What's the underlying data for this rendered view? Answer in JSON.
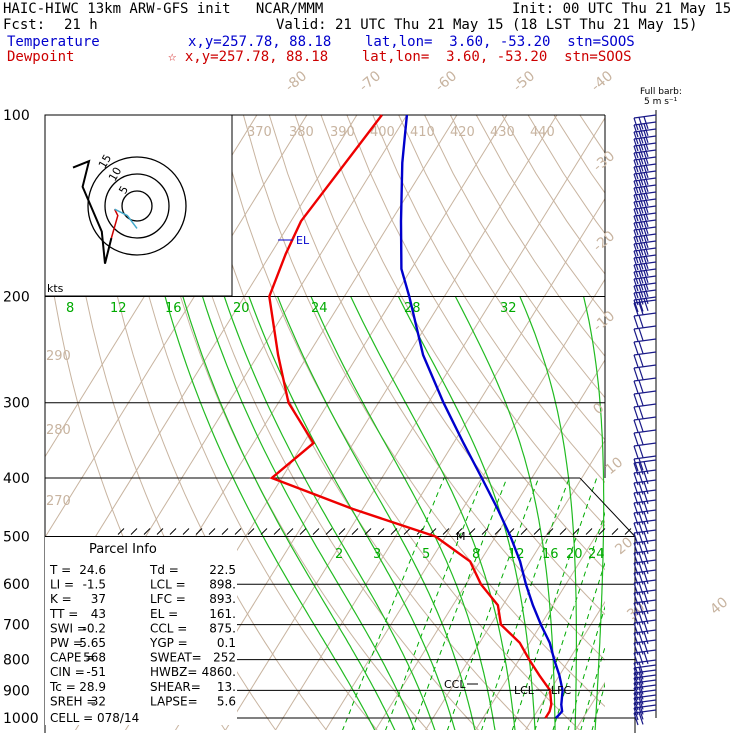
{
  "header": {
    "model_line": "HAIC-HIWC 13km ARW-GFS init   NCAR/MMM",
    "init_line": "Init: 00 UTC Thu 21 May 15",
    "fcst_label": "Fcst:",
    "fcst_value": "21 h",
    "valid_line": "Valid: 21 UTC Thu 21 May 15 (18 LST Thu 21 May 15)",
    "temp_label": "Temperature",
    "temp_info": "x,y=257.78, 88.18    lat,lon=  3.60, -53.20  stn=SOOS",
    "dew_label": "Dewpoint",
    "dew_info": "☆ x,y=257.78, 88.18    lat,lon=  3.60, -53.20  stn=SOOS"
  },
  "barb_label": "Full barb:",
  "barb_unit": "5 m s⁻¹",
  "hodo_unit": "kts",
  "hodo_ring_labels": [
    "5",
    "10",
    "15"
  ],
  "colors": {
    "temperature": "#0000cc",
    "dewpoint": "#ee0000",
    "isotherm": "#c8b4a0",
    "mixing_ratio": "#00aa00",
    "moist_adiabat": "#22bb22"
  },
  "parcel": {
    "title": "Parcel Info",
    "rows": [
      [
        "T  =",
        "24.6",
        "Td =",
        "22.5"
      ],
      [
        "LI =",
        "-1.5",
        "LCL =",
        "898."
      ],
      [
        "K  =",
        "37",
        "LFC =",
        "893."
      ],
      [
        "TT =",
        "43",
        "EL  =",
        "161."
      ],
      [
        "SWI =",
        "-0.2",
        "CCL =",
        "875."
      ],
      [
        "PW =",
        "5.65",
        "YGP =",
        "0.1"
      ],
      [
        "CAPE =",
        "568",
        "SWEAT=",
        "252"
      ],
      [
        "CIN =",
        "-51",
        "HWBZ=",
        "4860."
      ],
      [
        "Tc =",
        "28.9",
        "SHEAR=",
        "13."
      ],
      [
        "SREH =",
        "32",
        "LAPSE=",
        "5.6"
      ]
    ],
    "cell_line": "CELL = 078/14"
  },
  "chart_data": {
    "type": "line",
    "title": "",
    "xlabel": "",
    "ylabel": "",
    "y_axis": "pressure (hPa), log scale",
    "pressure_ticks": [
      "100",
      "200",
      "300",
      "400",
      "500",
      "600",
      "700",
      "800",
      "900",
      "1000"
    ],
    "isotherm_labels": [
      "-80",
      "-70",
      "-60",
      "-50",
      "-40",
      "-30",
      "-20",
      "-10",
      "0",
      "10",
      "20",
      "30",
      "40"
    ],
    "theta_labels": [
      "370",
      "380",
      "390",
      "400",
      "410",
      "420",
      "430",
      "440",
      "290",
      "280",
      "270"
    ],
    "mixing_ratio_labels": [
      "8",
      "12",
      "16",
      "20",
      "24",
      "28",
      "32"
    ],
    "mixing_ratio_labels_low": [
      "2",
      "3",
      "5",
      "8",
      "12",
      "16",
      "20",
      "24"
    ],
    "annotations": [
      "EL",
      "M",
      "CCL",
      "LCL",
      "LFC"
    ],
    "series": [
      {
        "name": "Temperature",
        "p": [
          100,
          120,
          150,
          180,
          200,
          250,
          300,
          350,
          400,
          450,
          500,
          550,
          600,
          650,
          700,
          750,
          800,
          850,
          900,
          950,
          975,
          1000
        ],
        "t": [
          -80,
          -75,
          -68,
          -62,
          -57,
          -47,
          -37,
          -28,
          -20,
          -13,
          -7,
          -2,
          2,
          6,
          10,
          14,
          17,
          20,
          22.5,
          24,
          25,
          24.6
        ]
      },
      {
        "name": "Dewpoint",
        "p": [
          100,
          150,
          170,
          200,
          250,
          300,
          350,
          400,
          450,
          500,
          550,
          600,
          650,
          700,
          750,
          800,
          850,
          900,
          950,
          975,
          1000
        ],
        "t": [
          -85,
          -88,
          -87,
          -85,
          -76,
          -68,
          -58,
          -62,
          -42,
          -22,
          -12,
          -7,
          -1,
          2,
          8,
          12,
          16,
          20,
          22,
          22.5,
          22.5
        ]
      }
    ],
    "hodograph": {
      "u": [
        -20,
        -15,
        -17,
        -11,
        -10,
        -8,
        -6,
        -7,
        -3,
        0
      ],
      "v": [
        12,
        14,
        6,
        -8,
        -18,
        -10,
        -3,
        -1,
        -3,
        -7
      ]
    }
  }
}
